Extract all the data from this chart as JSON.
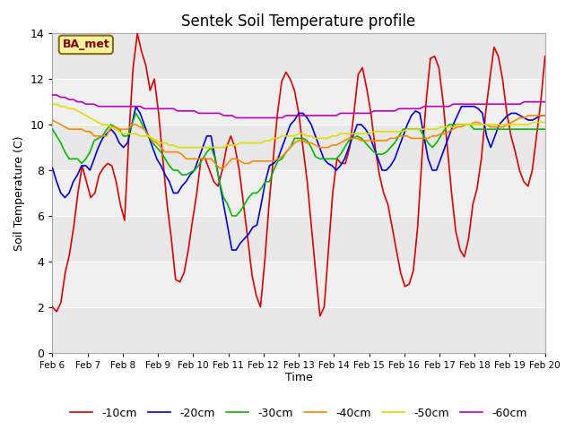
{
  "title": "Sentek Soil Temperature profile",
  "xlabel": "Time",
  "ylabel": "Soil Temperature (C)",
  "annotation": "BA_met",
  "ylim": [
    0,
    14
  ],
  "xlim": [
    0,
    14
  ],
  "xtick_labels": [
    "Feb 6",
    "Feb 7",
    "Feb 8",
    "Feb 9",
    "Feb 10",
    "Feb 11",
    "Feb 12",
    "Feb 13",
    "Feb 14",
    "Feb 15",
    "Feb 16",
    "Feb 17",
    "Feb 18",
    "Feb 19",
    "Feb 20"
  ],
  "xtick_positions": [
    0,
    1,
    2,
    3,
    4,
    5,
    6,
    7,
    8,
    9,
    10,
    11,
    12,
    13,
    14
  ],
  "ytick_positions": [
    0,
    2,
    4,
    6,
    8,
    10,
    12,
    14
  ],
  "colors": {
    "-10cm": "#dd0000",
    "-20cm": "#0000dd",
    "-30cm": "#00bb00",
    "-40cm": "#ff8800",
    "-50cm": "#dddd00",
    "-60cm": "#bb00bb"
  },
  "background_color": "#ffffff",
  "band_colors": [
    "#d8d8d8",
    "#ececec"
  ],
  "series": {
    "-10cm": [
      2.0,
      1.8,
      2.2,
      3.5,
      4.3,
      5.5,
      7.0,
      8.2,
      7.5,
      6.8,
      7.0,
      7.8,
      8.1,
      8.3,
      8.2,
      7.5,
      6.5,
      5.8,
      9.5,
      12.5,
      14.0,
      13.2,
      12.6,
      11.5,
      12.0,
      10.5,
      8.5,
      6.5,
      5.0,
      3.2,
      3.1,
      3.5,
      4.5,
      5.8,
      7.0,
      8.5,
      8.5,
      8.0,
      7.5,
      7.3,
      8.0,
      9.0,
      9.5,
      9.0,
      8.0,
      6.5,
      5.0,
      3.4,
      2.5,
      2.0,
      4.0,
      6.5,
      8.5,
      10.5,
      11.9,
      12.3,
      12.0,
      11.5,
      10.5,
      9.0,
      7.5,
      5.5,
      3.5,
      1.6,
      2.0,
      4.5,
      7.0,
      8.5,
      8.3,
      8.3,
      9.0,
      10.5,
      12.2,
      12.5,
      11.6,
      10.5,
      9.0,
      7.8,
      7.0,
      6.5,
      5.5,
      4.5,
      3.5,
      2.9,
      3.0,
      3.6,
      5.5,
      8.5,
      11.0,
      12.9,
      13.0,
      12.5,
      11.0,
      9.0,
      7.0,
      5.3,
      4.5,
      4.2,
      5.0,
      6.5,
      7.2,
      8.5,
      10.5,
      12.0,
      13.4,
      13.0,
      12.0,
      10.5,
      9.5,
      8.8,
      8.0,
      7.5,
      7.3,
      8.0,
      9.5,
      11.0,
      13.0
    ],
    "-20cm": [
      8.1,
      7.5,
      7.0,
      6.8,
      7.0,
      7.5,
      7.8,
      8.2,
      8.2,
      8.0,
      8.5,
      9.0,
      9.4,
      9.6,
      9.8,
      9.6,
      9.2,
      9.0,
      9.2,
      10.0,
      10.8,
      10.5,
      10.0,
      9.5,
      9.0,
      8.5,
      8.2,
      7.8,
      7.5,
      7.0,
      7.0,
      7.3,
      7.5,
      7.8,
      8.0,
      8.5,
      9.0,
      9.5,
      9.5,
      8.5,
      7.5,
      6.5,
      5.5,
      4.5,
      4.5,
      4.8,
      5.0,
      5.2,
      5.5,
      5.6,
      6.5,
      7.5,
      8.2,
      8.3,
      8.5,
      9.0,
      9.5,
      10.0,
      10.2,
      10.5,
      10.5,
      10.3,
      10.0,
      9.5,
      9.0,
      8.5,
      8.3,
      8.2,
      8.0,
      8.2,
      8.5,
      9.0,
      9.5,
      10.0,
      10.0,
      9.8,
      9.5,
      9.0,
      8.5,
      8.0,
      8.0,
      8.2,
      8.5,
      9.0,
      9.5,
      10.0,
      10.4,
      10.6,
      10.5,
      9.5,
      8.5,
      8.0,
      8.0,
      8.5,
      9.0,
      9.5,
      10.0,
      10.4,
      10.8,
      10.8,
      10.8,
      10.8,
      10.7,
      10.5,
      9.5,
      9.0,
      9.5,
      10.0,
      10.2,
      10.4,
      10.5,
      10.5,
      10.4,
      10.3,
      10.2,
      10.2,
      10.3,
      10.4,
      10.4
    ],
    "-30cm": [
      9.8,
      9.5,
      9.2,
      8.8,
      8.5,
      8.5,
      8.5,
      8.3,
      8.5,
      8.8,
      9.3,
      9.4,
      9.5,
      9.8,
      10.0,
      9.9,
      9.8,
      9.5,
      9.5,
      10.0,
      10.5,
      10.2,
      9.8,
      9.5,
      9.2,
      9.0,
      8.8,
      8.5,
      8.2,
      8.0,
      8.0,
      7.8,
      7.8,
      7.9,
      8.0,
      8.2,
      8.5,
      8.8,
      9.0,
      8.5,
      7.5,
      6.8,
      6.5,
      6.0,
      6.0,
      6.2,
      6.5,
      6.8,
      7.0,
      7.0,
      7.2,
      7.5,
      7.5,
      8.0,
      8.4,
      8.5,
      8.8,
      9.0,
      9.4,
      9.4,
      9.4,
      9.3,
      9.0,
      8.6,
      8.5,
      8.5,
      8.5,
      8.5,
      8.5,
      8.7,
      9.0,
      9.3,
      9.4,
      9.5,
      9.4,
      9.2,
      9.0,
      8.8,
      8.7,
      8.7,
      8.8,
      9.0,
      9.2,
      9.5,
      9.8,
      9.8,
      9.8,
      9.8,
      9.8,
      9.5,
      9.2,
      9.0,
      9.2,
      9.5,
      9.8,
      10.0,
      10.0,
      10.0,
      10.0,
      10.0,
      10.0,
      9.8,
      9.8,
      9.8,
      9.8,
      9.8,
      9.8,
      9.8,
      9.8,
      9.8,
      9.8,
      9.8,
      9.8,
      9.8,
      9.8,
      9.8,
      9.8,
      9.8,
      9.8
    ],
    "-40cm": [
      10.2,
      10.1,
      10.0,
      9.9,
      9.8,
      9.8,
      9.8,
      9.8,
      9.7,
      9.7,
      9.5,
      9.5,
      9.5,
      9.5,
      9.9,
      9.9,
      9.8,
      9.8,
      9.8,
      10.0,
      10.0,
      9.9,
      9.8,
      9.5,
      9.3,
      9.2,
      9.0,
      8.8,
      8.8,
      8.8,
      8.8,
      8.7,
      8.5,
      8.5,
      8.5,
      8.5,
      8.5,
      8.5,
      8.5,
      8.3,
      8.1,
      8.1,
      8.3,
      8.5,
      8.5,
      8.4,
      8.3,
      8.3,
      8.4,
      8.4,
      8.4,
      8.4,
      8.4,
      8.4,
      8.5,
      8.6,
      8.8,
      9.0,
      9.2,
      9.3,
      9.3,
      9.2,
      9.2,
      9.1,
      9.0,
      9.0,
      9.0,
      9.1,
      9.1,
      9.2,
      9.3,
      9.4,
      9.4,
      9.4,
      9.3,
      9.3,
      9.3,
      9.3,
      9.3,
      9.3,
      9.3,
      9.4,
      9.4,
      9.5,
      9.5,
      9.5,
      9.4,
      9.4,
      9.4,
      9.4,
      9.4,
      9.5,
      9.5,
      9.6,
      9.6,
      9.7,
      9.8,
      9.9,
      9.9,
      10.0,
      10.0,
      10.1,
      10.1,
      10.0,
      10.0,
      9.9,
      9.9,
      9.9,
      9.9,
      10.0,
      10.1,
      10.2,
      10.3,
      10.3,
      10.4,
      10.4,
      10.4,
      10.4,
      10.4
    ],
    "-50cm": [
      10.9,
      10.9,
      10.8,
      10.8,
      10.7,
      10.7,
      10.6,
      10.5,
      10.4,
      10.3,
      10.2,
      10.1,
      10.0,
      10.0,
      9.9,
      9.8,
      9.7,
      9.6,
      9.6,
      9.6,
      9.6,
      9.5,
      9.5,
      9.5,
      9.4,
      9.3,
      9.2,
      9.2,
      9.1,
      9.1,
      9.0,
      9.0,
      9.0,
      9.0,
      9.0,
      9.0,
      9.0,
      9.0,
      9.0,
      9.0,
      9.0,
      9.0,
      9.1,
      9.1,
      9.1,
      9.2,
      9.2,
      9.2,
      9.2,
      9.2,
      9.2,
      9.3,
      9.3,
      9.4,
      9.4,
      9.5,
      9.5,
      9.5,
      9.5,
      9.6,
      9.6,
      9.5,
      9.5,
      9.4,
      9.4,
      9.4,
      9.4,
      9.5,
      9.5,
      9.6,
      9.6,
      9.6,
      9.6,
      9.6,
      9.6,
      9.6,
      9.6,
      9.7,
      9.7,
      9.7,
      9.7,
      9.7,
      9.7,
      9.7,
      9.7,
      9.8,
      9.8,
      9.8,
      9.8,
      9.8,
      9.8,
      9.8,
      9.8,
      9.9,
      9.9,
      9.9,
      9.9,
      10.0,
      10.0,
      10.0,
      10.0,
      10.0,
      10.0,
      10.0,
      10.0,
      10.0,
      10.0,
      10.0,
      10.0,
      10.0,
      10.0,
      10.0,
      10.0,
      10.0,
      10.0,
      10.1,
      10.1,
      10.1,
      10.1
    ],
    "-60cm": [
      11.3,
      11.3,
      11.2,
      11.2,
      11.1,
      11.1,
      11.0,
      11.0,
      10.9,
      10.9,
      10.9,
      10.8,
      10.8,
      10.8,
      10.8,
      10.8,
      10.8,
      10.8,
      10.8,
      10.8,
      10.8,
      10.8,
      10.7,
      10.7,
      10.7,
      10.7,
      10.7,
      10.7,
      10.7,
      10.7,
      10.6,
      10.6,
      10.6,
      10.6,
      10.6,
      10.5,
      10.5,
      10.5,
      10.5,
      10.5,
      10.5,
      10.4,
      10.4,
      10.4,
      10.3,
      10.3,
      10.3,
      10.3,
      10.3,
      10.3,
      10.3,
      10.3,
      10.3,
      10.3,
      10.3,
      10.3,
      10.4,
      10.4,
      10.4,
      10.4,
      10.4,
      10.4,
      10.4,
      10.4,
      10.4,
      10.4,
      10.4,
      10.4,
      10.4,
      10.5,
      10.5,
      10.5,
      10.5,
      10.5,
      10.5,
      10.5,
      10.5,
      10.6,
      10.6,
      10.6,
      10.6,
      10.6,
      10.6,
      10.7,
      10.7,
      10.7,
      10.7,
      10.7,
      10.7,
      10.8,
      10.8,
      10.8,
      10.8,
      10.8,
      10.8,
      10.8,
      10.9,
      10.9,
      10.9,
      10.9,
      10.9,
      10.9,
      10.9,
      10.9,
      10.9,
      10.9,
      10.9,
      10.9,
      10.9,
      10.9,
      10.9,
      10.9,
      10.9,
      11.0,
      11.0,
      11.0,
      11.0,
      11.0,
      11.0
    ]
  }
}
